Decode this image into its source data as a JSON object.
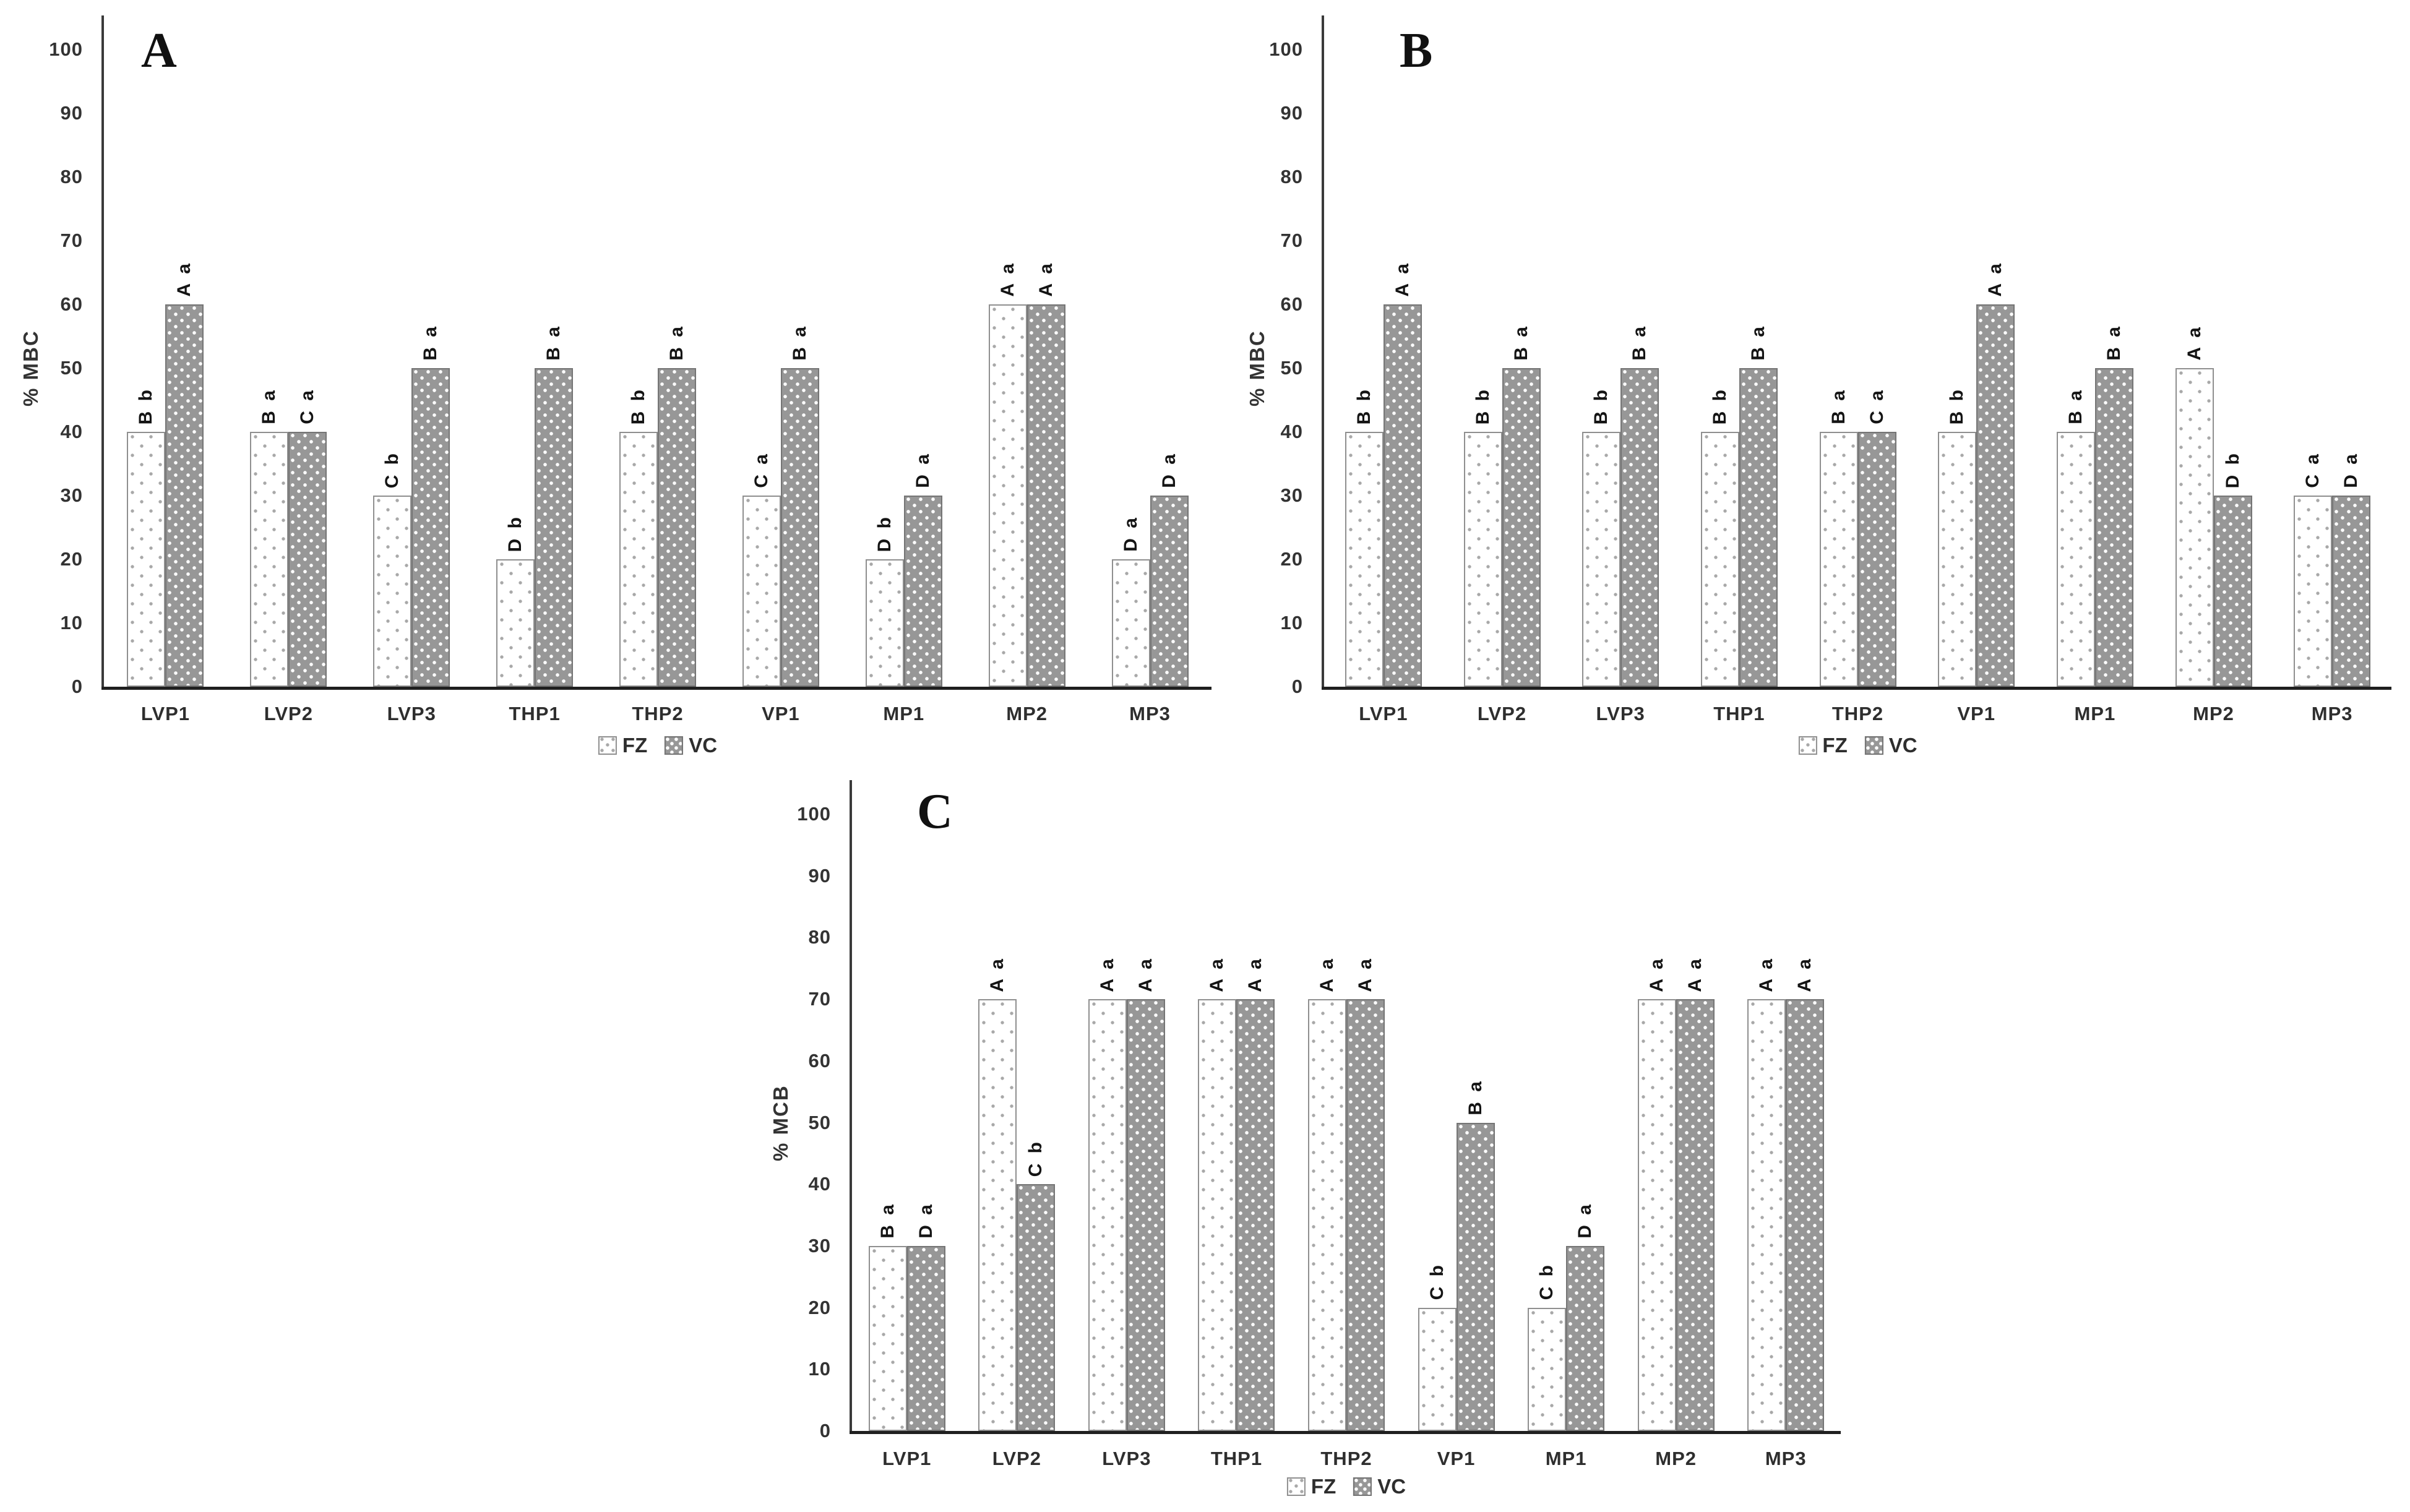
{
  "figure_title": "",
  "colors": {
    "axis": "#3a3a3a",
    "axis_dark": "#1f1f1f",
    "text": "#333333",
    "fz_fill": "#ffffff",
    "fz_dot": "#a8a8a8",
    "fz_border": "#8f8f8f",
    "vc_fill": "#979797",
    "vc_dot": "#ffffff",
    "vc_border": "#757575"
  },
  "chart_data": [
    {
      "panel": "A",
      "type": "bar",
      "title": "",
      "xlabel": "",
      "ylabel": "% MBC",
      "ylim": [
        0,
        100
      ],
      "ytick_step": 10,
      "grid": false,
      "legend_position": "bottom-center",
      "categories": [
        "LVP1",
        "LVP2",
        "LVP3",
        "THP1",
        "THP2",
        "VP1",
        "MP1",
        "MP2",
        "MP3"
      ],
      "series": [
        {
          "name": "FZ",
          "values": [
            40,
            40,
            30,
            20,
            40,
            30,
            20,
            60,
            20
          ],
          "labels": [
            "B b",
            "B a",
            "C b",
            "D b",
            "B b",
            "C a",
            "D b",
            "A a",
            "D a"
          ]
        },
        {
          "name": "VC",
          "values": [
            60,
            40,
            50,
            50,
            50,
            50,
            30,
            60,
            30
          ],
          "labels": [
            "A a",
            "C a",
            "B a",
            "B a",
            "B a",
            "B a",
            "D a",
            "A a",
            "D a"
          ]
        }
      ]
    },
    {
      "panel": "B",
      "type": "bar",
      "title": "",
      "xlabel": "",
      "ylabel": "% MBC",
      "ylim": [
        0,
        100
      ],
      "ytick_step": 10,
      "grid": false,
      "legend_position": "bottom-center",
      "categories": [
        "LVP1",
        "LVP2",
        "LVP3",
        "THP1",
        "THP2",
        "VP1",
        "MP1",
        "MP2",
        "MP3"
      ],
      "series": [
        {
          "name": "FZ",
          "values": [
            40,
            40,
            40,
            40,
            40,
            40,
            40,
            50,
            30
          ],
          "labels": [
            "B b",
            "B b",
            "B b",
            "B b",
            "B a",
            "B b",
            "B a",
            "A a",
            "C a"
          ]
        },
        {
          "name": "VC",
          "values": [
            60,
            50,
            50,
            50,
            40,
            60,
            50,
            30,
            30
          ],
          "labels": [
            "A a",
            "B a",
            "B a",
            "B a",
            "C a",
            "A a",
            "B a",
            "D b",
            "D a"
          ]
        }
      ]
    },
    {
      "panel": "C",
      "type": "bar",
      "title": "",
      "xlabel": "",
      "ylabel": "% MCB",
      "ylim": [
        0,
        100
      ],
      "ytick_step": 10,
      "grid": false,
      "legend_position": "bottom-center",
      "categories": [
        "LVP1",
        "LVP2",
        "LVP3",
        "THP1",
        "THP2",
        "VP1",
        "MP1",
        "MP2",
        "MP3"
      ],
      "series": [
        {
          "name": "FZ",
          "values": [
            30,
            70,
            70,
            70,
            70,
            20,
            20,
            70,
            70
          ],
          "labels": [
            "B a",
            "A a",
            "A a",
            "A a",
            "A a",
            "C b",
            "C b",
            "A a",
            "A a"
          ]
        },
        {
          "name": "VC",
          "values": [
            30,
            40,
            70,
            70,
            70,
            50,
            30,
            70,
            70
          ],
          "labels": [
            "D a",
            "C b",
            "A a",
            "A a",
            "A a",
            "B a",
            "D a",
            "A a",
            "A a"
          ]
        }
      ]
    }
  ]
}
